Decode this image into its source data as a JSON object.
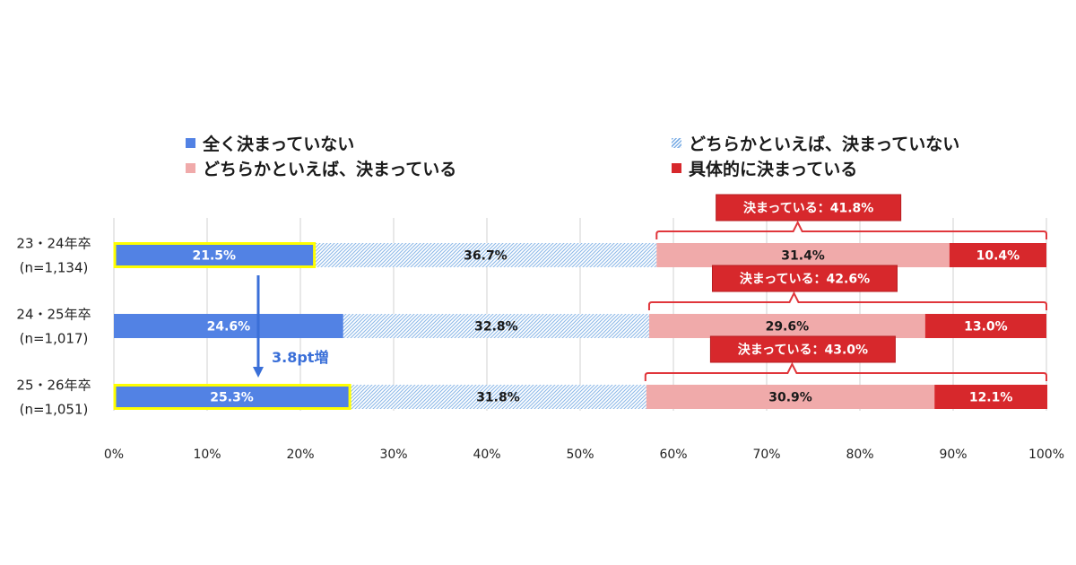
{
  "chart_data": {
    "type": "bar",
    "stacked": true,
    "orientation": "horizontal",
    "categories": [
      [
        "23・24年卒",
        "(n=1,134)"
      ],
      [
        "24・25年卒",
        "(n=1,017)"
      ],
      [
        "25・26年卒",
        "(n=1,051)"
      ]
    ],
    "series": [
      {
        "name": "全く決まっていない",
        "values": [
          21.5,
          24.6,
          25.3
        ],
        "color": "#5282e4",
        "label_color": "#ffffff",
        "pattern": "solid"
      },
      {
        "name": "どちらかといえば、決まっていない",
        "values": [
          36.7,
          32.8,
          31.8
        ],
        "color": "#9ec3ea",
        "label_color": "#1a1a1a",
        "pattern": "hatch"
      },
      {
        "name": "どちらかといえば、決まっている",
        "values": [
          31.4,
          29.6,
          30.9
        ],
        "color": "#f0aaaa",
        "label_color": "#1a1a1a",
        "pattern": "solid"
      },
      {
        "name": "具体的に決まっている",
        "values": [
          10.4,
          13.0,
          12.1
        ],
        "color": "#d7282c",
        "label_color": "#ffffff",
        "pattern": "solid"
      }
    ],
    "value_labels": [
      [
        "21.5%",
        "36.7%",
        "31.4%",
        "10.4%"
      ],
      [
        "24.6%",
        "32.8%",
        "29.6%",
        "13.0%"
      ],
      [
        "25.3%",
        "31.8%",
        "30.9%",
        "12.1%"
      ]
    ],
    "x_ticks": [
      "0%",
      "10%",
      "20%",
      "30%",
      "40%",
      "50%",
      "60%",
      "70%",
      "80%",
      "90%",
      "100%"
    ],
    "xlim": [
      0,
      100
    ],
    "grid": true,
    "legend_position": "top",
    "highlighted_categories": [
      0,
      2
    ],
    "highlight_color": "#ffff00",
    "bracket_color": "#e0363b",
    "group_annotations": [
      {
        "text": "決まっている：41.8%",
        "value": 41.8
      },
      {
        "text": "決まっている：42.6%",
        "value": 42.6
      },
      {
        "text": "決まっている：43.0%",
        "value": 43.0
      }
    ],
    "change_annotation": {
      "text": "3.8pt増",
      "from_category": 0,
      "to_category": 2,
      "color": "#3a6fd8"
    }
  }
}
